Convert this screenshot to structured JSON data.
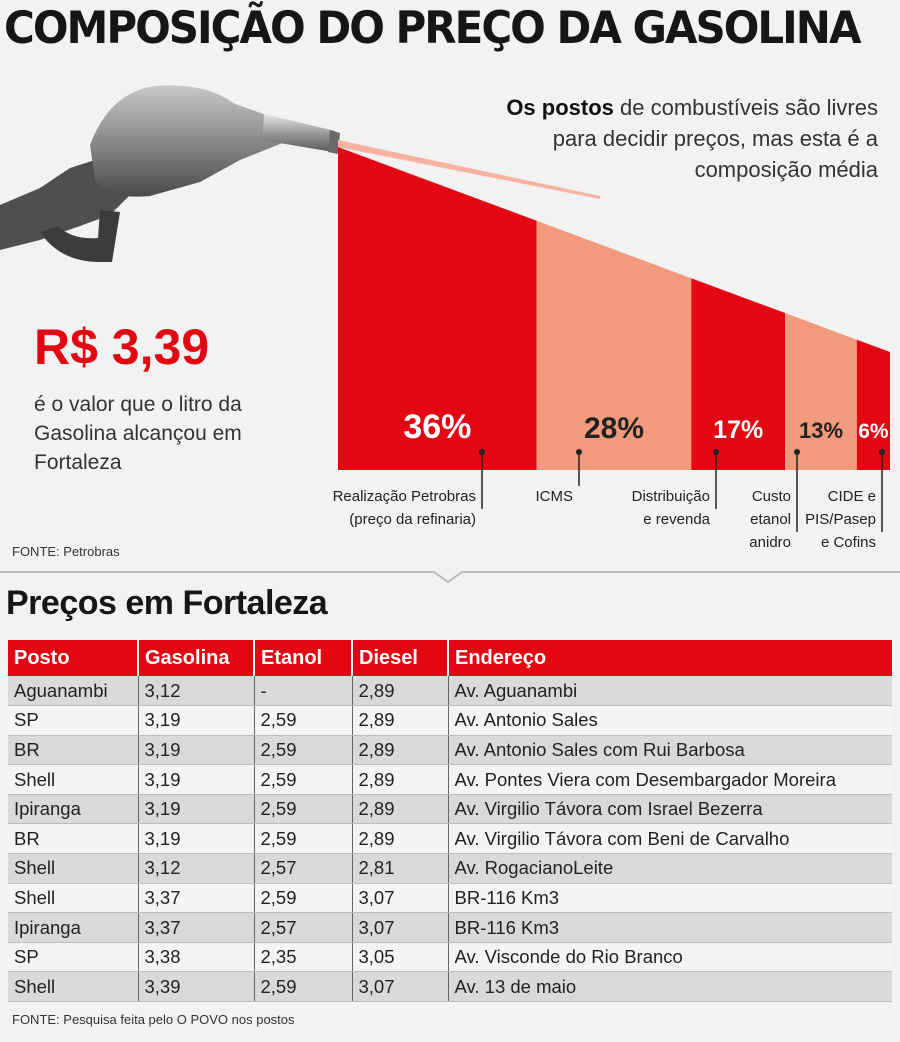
{
  "title": "COMPOSIÇÃO DO PREÇO DA GASOLINA",
  "intro": {
    "bold": "Os postos",
    "rest": " de combustíveis são livres para decidir preços, mas esta é a composição média"
  },
  "price": {
    "value": "R$ 3,39",
    "description": "é o valor que o litro da Gasolina alcançou em Fortaleza"
  },
  "source_chart": "FONTE: Petrobras",
  "colors": {
    "red": "#e30613",
    "salmon": "#f19a7c"
  },
  "icons": [
    "fuel-nozzle-icon"
  ],
  "chart_data": {
    "type": "bar",
    "categories": [
      "Realização Petrobras (preço da refinaria)",
      "ICMS",
      "Distribuição e revenda",
      "Custo etanol anidro",
      "CIDE e PIS/Pasep e Cofins"
    ],
    "values": [
      36,
      28,
      17,
      13,
      6
    ],
    "value_labels": [
      "36%",
      "28%",
      "17%",
      "13%",
      "6%"
    ],
    "label_lines": [
      [
        "Realização Petrobras",
        "(preço da refinaria)"
      ],
      [
        "ICMS"
      ],
      [
        "Distribuição",
        "e revenda"
      ],
      [
        "Custo",
        "etanol",
        "anidro"
      ],
      [
        "CIDE e",
        "PIS/Pasep",
        "e Cofins"
      ]
    ],
    "bar_colors": [
      "#e30613",
      "#f19a7c",
      "#e30613",
      "#f19a7c",
      "#e30613"
    ]
  },
  "table": {
    "title": "Preços em Fortaleza",
    "headers": [
      "Posto",
      "Gasolina",
      "Etanol",
      "Diesel",
      "Endereço"
    ],
    "rows": [
      [
        "Aguanambi",
        "3,12",
        "-",
        "2,89",
        "Av. Aguanambi"
      ],
      [
        "SP",
        "3,19",
        "2,59",
        "2,89",
        "Av. Antonio Sales"
      ],
      [
        "BR",
        "3,19",
        "2,59",
        "2,89",
        "Av. Antonio Sales com Rui Barbosa"
      ],
      [
        "Shell",
        "3,19",
        "2,59",
        "2,89",
        "Av. Pontes Viera com Desembargador Moreira"
      ],
      [
        "Ipiranga",
        "3,19",
        "2,59",
        "2,89",
        "Av. Virgilio Távora com Israel Bezerra"
      ],
      [
        "BR",
        "3,19",
        "2,59",
        "2,89",
        "Av. Virgilio Távora com Beni de Carvalho"
      ],
      [
        "Shell",
        "3,12",
        "2,57",
        "2,81",
        "Av. RogacianoLeite"
      ],
      [
        "Shell",
        "3,37",
        "2,59",
        "3,07",
        "BR-116 Km3"
      ],
      [
        "Ipiranga",
        "3,37",
        "2,57",
        "3,07",
        "BR-116 Km3"
      ],
      [
        "SP",
        "3,38",
        "2,35",
        "3,05",
        "Av. Visconde do Rio Branco"
      ],
      [
        "Shell",
        "3,39",
        "2,59",
        "3,07",
        "Av. 13 de maio"
      ]
    ]
  },
  "source_table": "FONTE: Pesquisa feita pelo O POVO nos postos"
}
